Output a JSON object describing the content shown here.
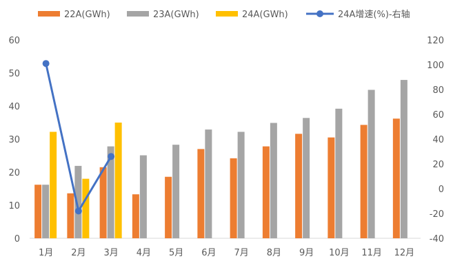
{
  "chart_data": {
    "type": "bar",
    "categories": [
      "1月",
      "2月",
      "3月",
      "4月",
      "5月",
      "6月",
      "7月",
      "8月",
      "9月",
      "10月",
      "11月",
      "12月"
    ],
    "series": [
      {
        "name": "22A(GWh)",
        "color": "#ED7D31",
        "axis": "left",
        "values": [
          16.2,
          13.6,
          21.5,
          13.3,
          18.6,
          27.0,
          24.2,
          27.8,
          31.6,
          30.5,
          34.3,
          36.2
        ]
      },
      {
        "name": "23A(GWh)",
        "color": "#A5A5A5",
        "axis": "left",
        "values": [
          16.2,
          21.9,
          27.8,
          25.1,
          28.3,
          32.9,
          32.2,
          34.9,
          36.4,
          39.2,
          44.9,
          47.9
        ]
      },
      {
        "name": "24A(GWh)",
        "color": "#FFC000",
        "axis": "left",
        "values": [
          32.2,
          18.0,
          35.0,
          null,
          null,
          null,
          null,
          null,
          null,
          null,
          null,
          null
        ]
      },
      {
        "name": "24A增速(%)-右轴",
        "color": "#4472C4",
        "axis": "right",
        "type": "line",
        "values": [
          101,
          -18,
          26,
          null,
          null,
          null,
          null,
          null,
          null,
          null,
          null,
          null
        ]
      }
    ],
    "ylim": [
      0,
      60
    ],
    "yticks": [
      "0",
      "10",
      "20",
      "30",
      "40",
      "50",
      "60"
    ],
    "y2lim": [
      -40,
      120
    ],
    "y2ticks": [
      "-40",
      "-20",
      "0",
      "20",
      "40",
      "60",
      "80",
      "100",
      "120"
    ],
    "grid": false,
    "legend": "top"
  }
}
